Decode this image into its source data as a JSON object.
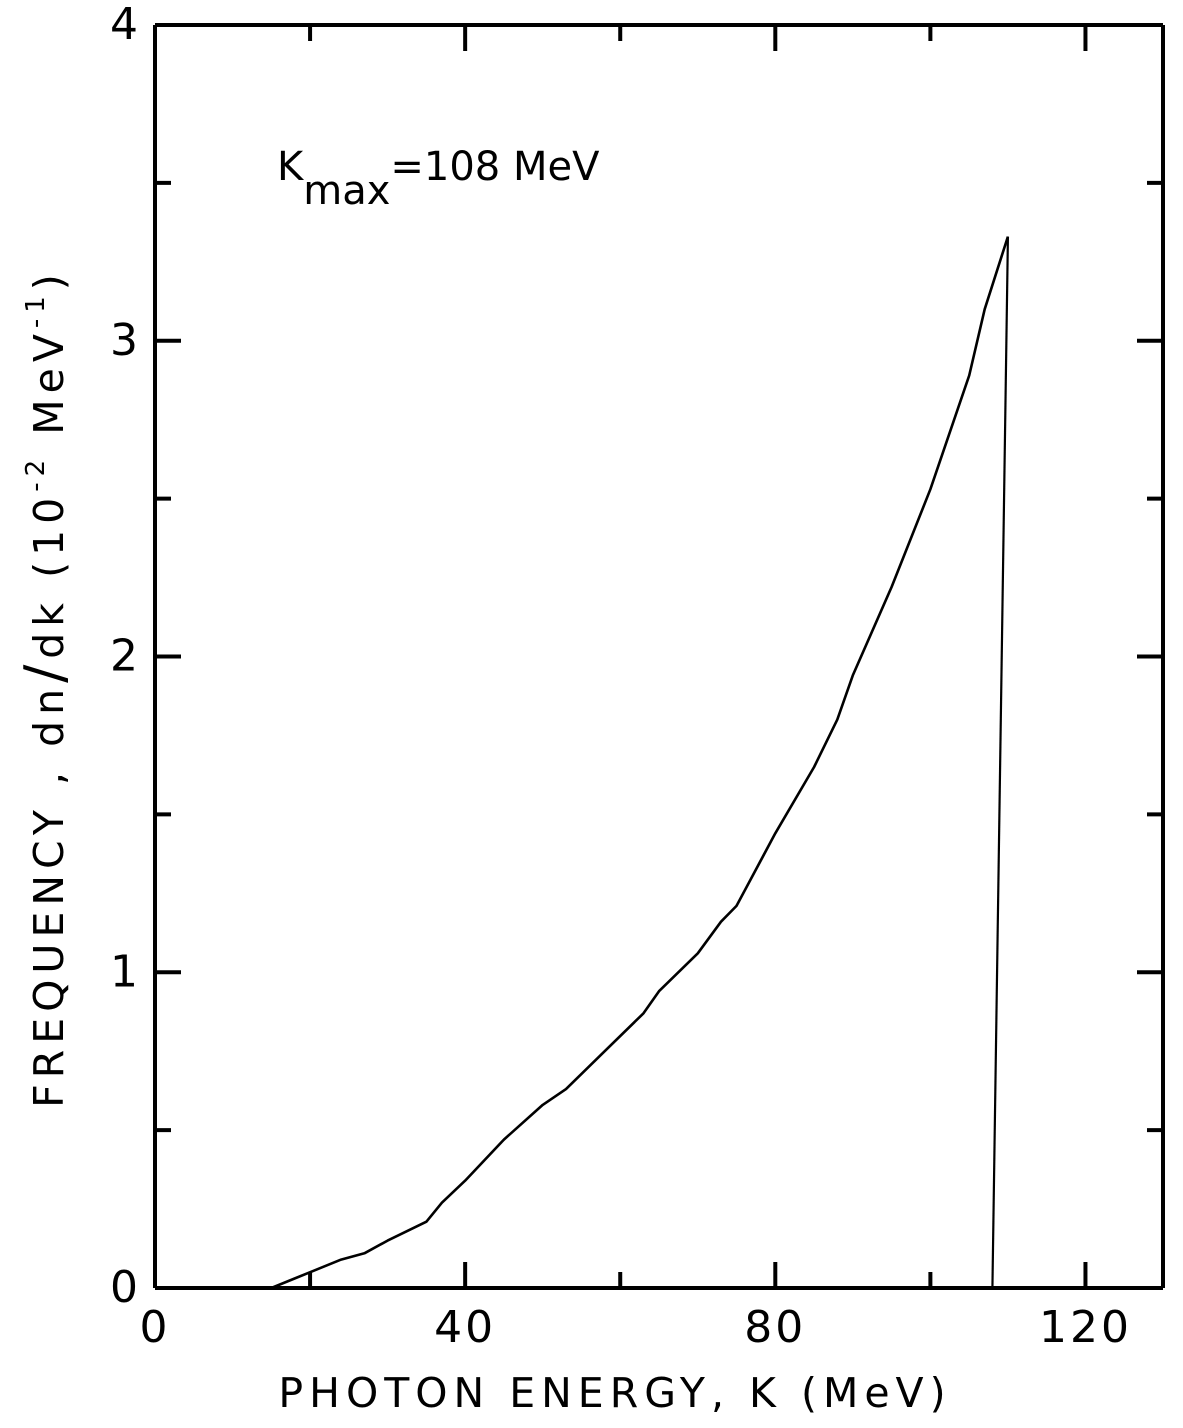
{
  "chart_data": {
    "type": "line",
    "title": "",
    "xlabel": "PHOTON ENERGY, K (MeV)",
    "ylabel": "FREQUENCY , dn/dk (10⁻² MeV⁻¹)",
    "ylabel_parts": {
      "main": "FREQUENCY , dn",
      "slash": "/",
      "post": "dk (10",
      "sup1": "-2",
      "mid": " MeV",
      "sup2": "-1",
      "close": ")"
    },
    "annotation": {
      "text": "Kmax=108 MeV",
      "k": "K",
      "sub": "max",
      "rest": "=108 MeV"
    },
    "xlim": [
      0,
      130
    ],
    "ylim": [
      0,
      4
    ],
    "x_ticks": [
      0,
      40,
      80,
      120
    ],
    "x_tick_labels": [
      "0",
      "40",
      "80",
      "120"
    ],
    "x_minor_ticks": [
      20,
      60,
      100
    ],
    "y_ticks": [
      0,
      1,
      2,
      3,
      4
    ],
    "y_tick_labels": [
      "0",
      "1",
      "2",
      "3",
      "4"
    ],
    "y_minor_ticks": [
      0.5,
      1.5,
      2.5,
      3.5
    ],
    "grid": false,
    "legend": "none",
    "line_color": "#000000",
    "series": [
      {
        "x": [
          0,
          15,
          18,
          21,
          24,
          27,
          30,
          35,
          37,
          40,
          45,
          50,
          53,
          58,
          63,
          65,
          70,
          73,
          75,
          80,
          85,
          88,
          90,
          95,
          100,
          105,
          107,
          110
        ],
        "values": [
          0,
          0,
          0.03,
          0.06,
          0.09,
          0.11,
          0.15,
          0.21,
          0.27,
          0.34,
          0.47,
          0.58,
          0.63,
          0.75,
          0.87,
          0.94,
          1.06,
          1.16,
          1.21,
          1.44,
          1.65,
          1.8,
          1.94,
          2.22,
          2.53,
          2.89,
          3.1,
          3.33
        ]
      }
    ],
    "cutoff_line": {
      "top_x": 110,
      "top_y": 3.33,
      "bottom_x": 108,
      "bottom_y": 0
    }
  }
}
